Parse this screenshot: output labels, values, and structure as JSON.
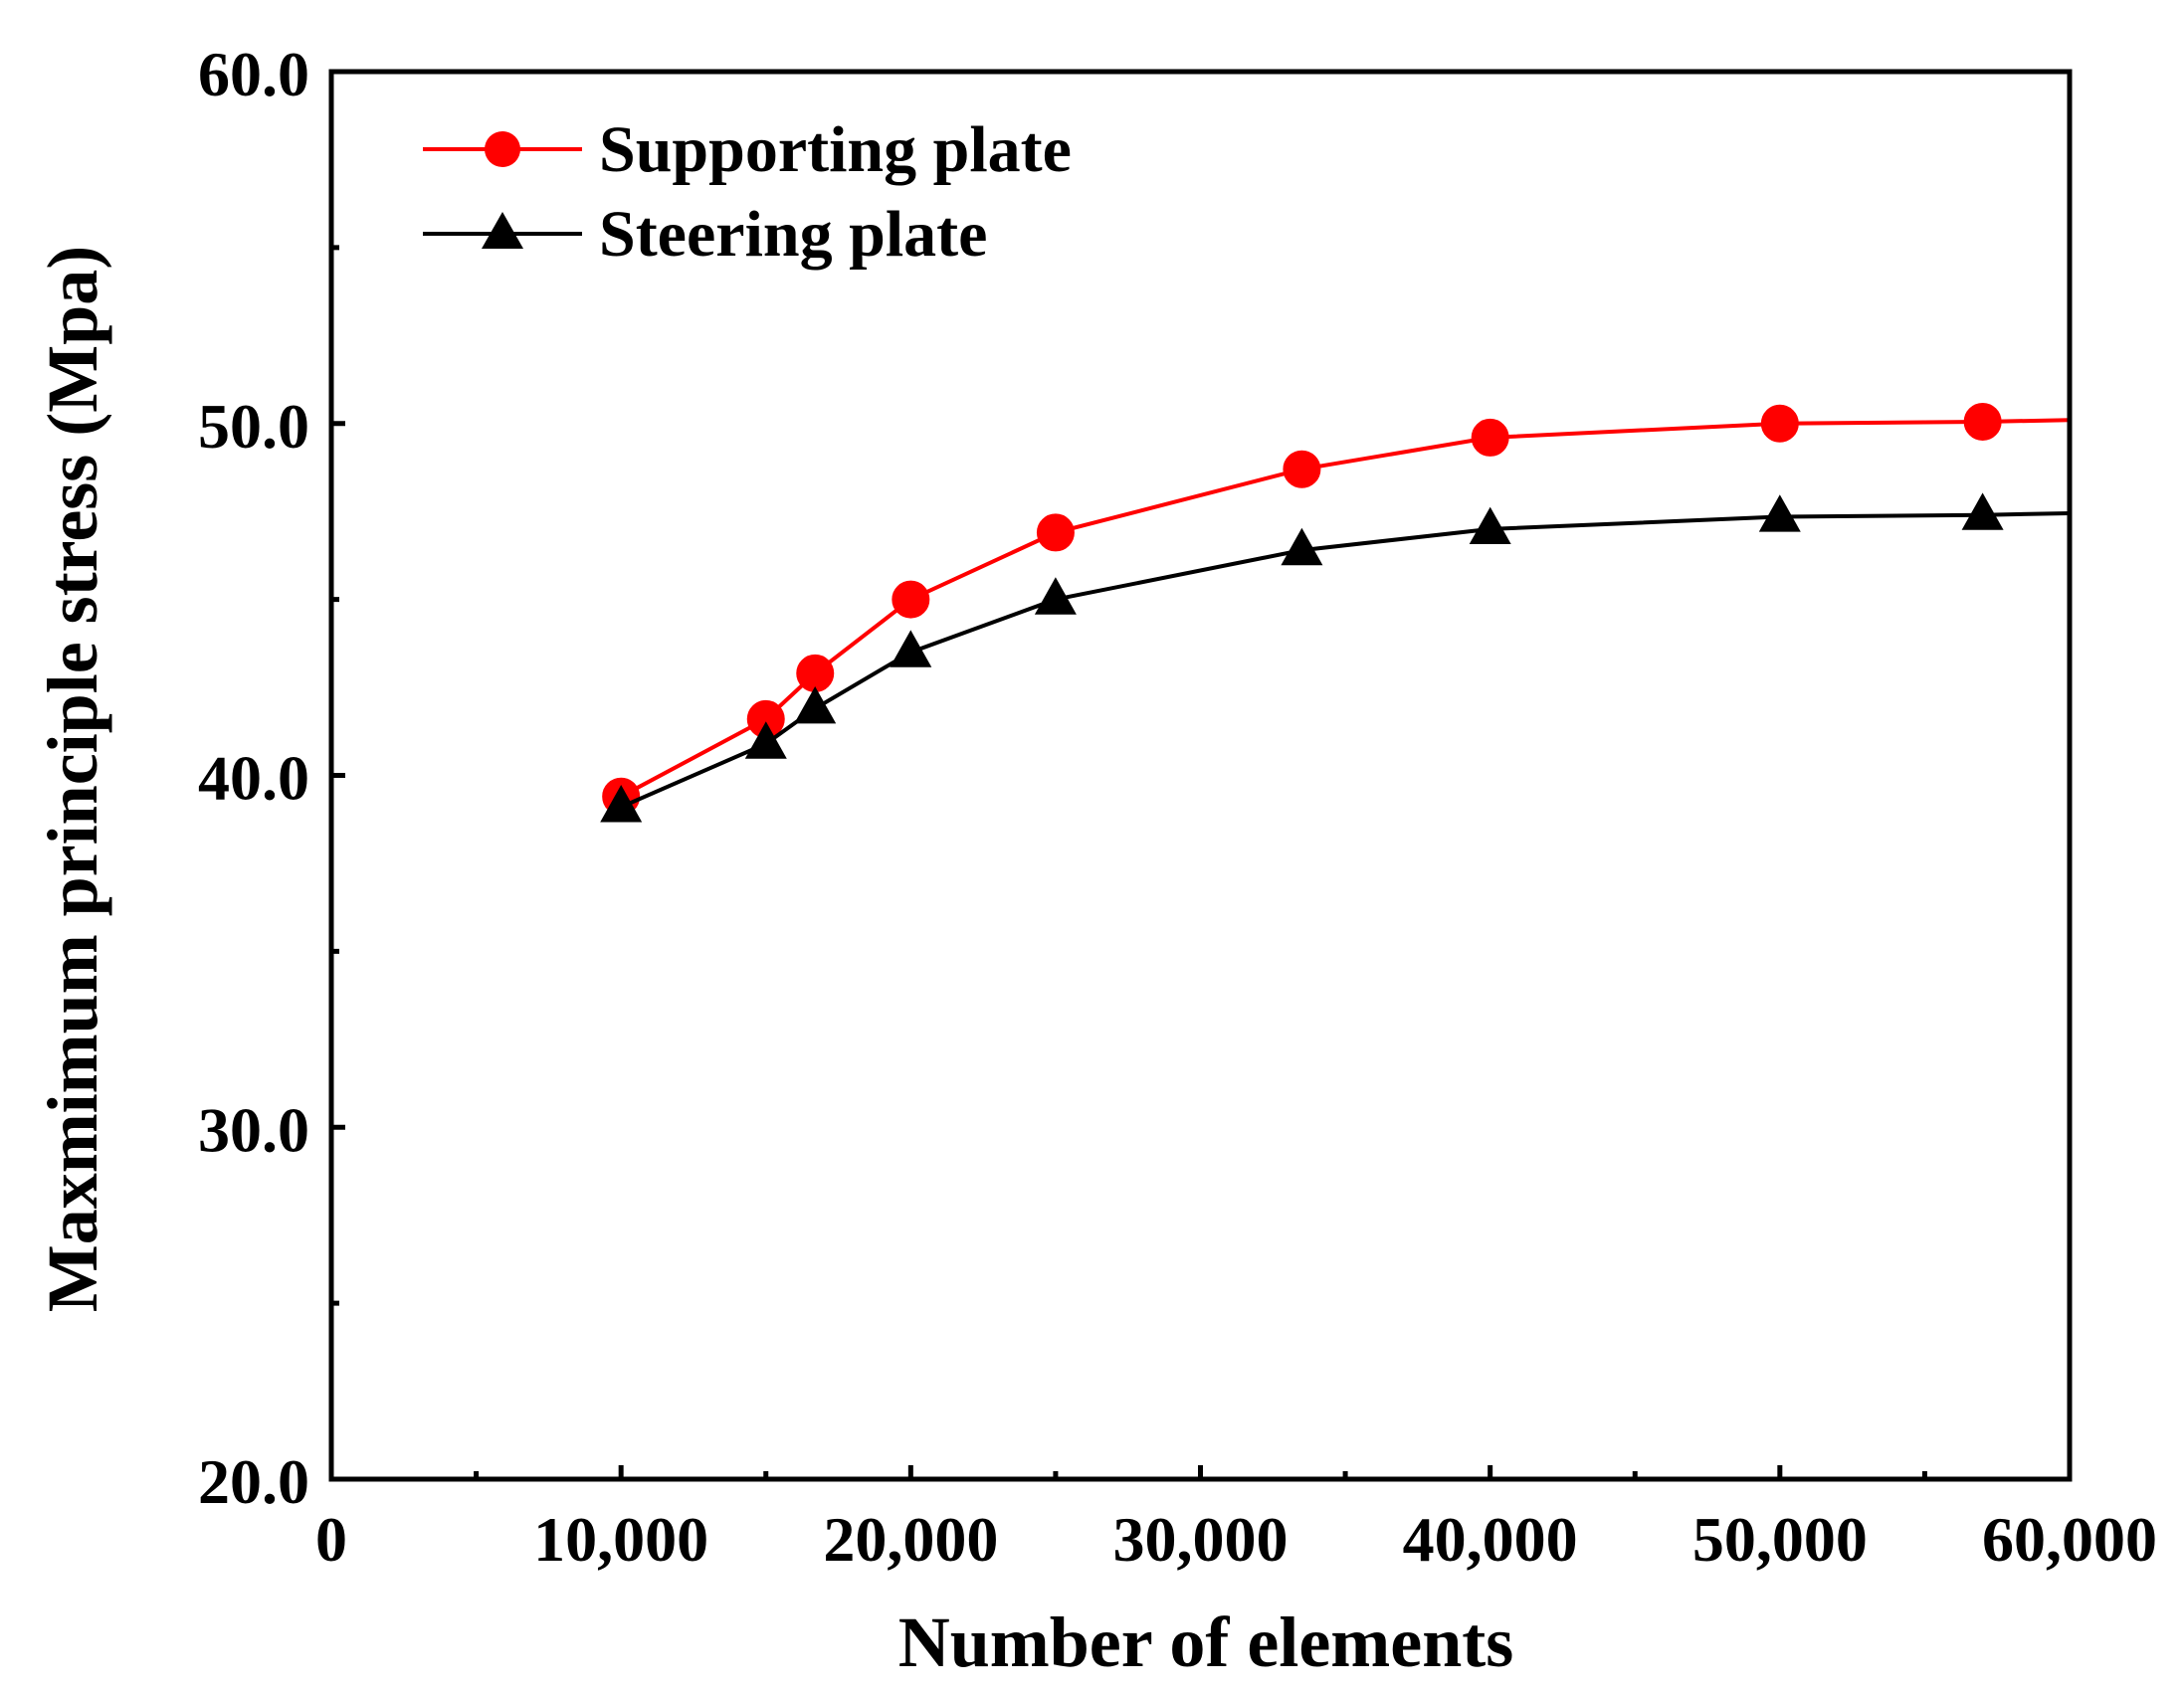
{
  "chart_data": {
    "type": "line",
    "title": "",
    "xlabel": "Number of elements",
    "ylabel": "Maxmimum principle stress (Mpa)",
    "xlim": [
      0,
      60000
    ],
    "ylim": [
      20,
      60
    ],
    "x_ticks": [
      0,
      10000,
      20000,
      30000,
      40000,
      50000,
      60000
    ],
    "x_tick_labels": [
      "0",
      "10,000",
      "20,000",
      "30,000",
      "40,000",
      "50,000",
      "60,000"
    ],
    "y_ticks": [
      20,
      30,
      40,
      50,
      60
    ],
    "y_tick_labels": [
      "20.0",
      "30.0",
      "40.0",
      "50.0",
      "60.0"
    ],
    "legend_position": "top-left",
    "series": [
      {
        "name": "Supporting plate",
        "color": "#ff0000",
        "marker": "circle",
        "x": [
          10000,
          15000,
          16700,
          20000,
          25000,
          33500,
          40000,
          50000,
          57000,
          60000
        ],
        "y": [
          39.4,
          41.6,
          42.9,
          45.0,
          46.9,
          48.7,
          49.6,
          50.0,
          50.05,
          50.1
        ],
        "markers_shown": [
          true,
          true,
          true,
          true,
          true,
          true,
          true,
          true,
          true,
          false
        ]
      },
      {
        "name": "Steering plate",
        "color": "#000000",
        "marker": "triangle",
        "x": [
          10000,
          15000,
          16700,
          20000,
          25000,
          33500,
          40000,
          50000,
          57000,
          60000
        ],
        "y": [
          39.1,
          40.9,
          41.9,
          43.5,
          45.0,
          46.4,
          47.0,
          47.35,
          47.4,
          47.45
        ],
        "markers_shown": [
          true,
          true,
          true,
          true,
          true,
          true,
          true,
          true,
          true,
          false
        ]
      }
    ]
  }
}
